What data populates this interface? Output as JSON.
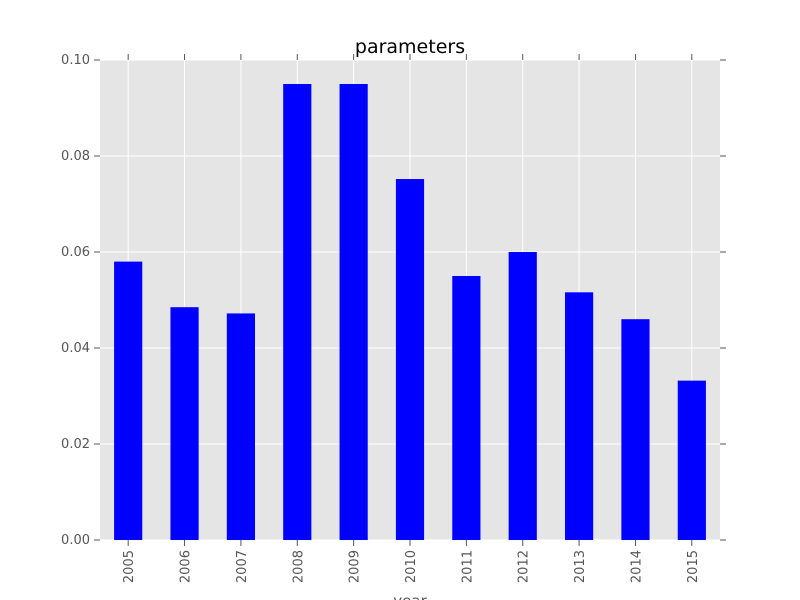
{
  "chart_data": {
    "type": "bar",
    "title": "parameters",
    "xlabel": "year",
    "ylabel": "",
    "categories": [
      "2005",
      "2006",
      "2007",
      "2008",
      "2009",
      "2010",
      "2011",
      "2012",
      "2013",
      "2014",
      "2015"
    ],
    "values": [
      0.058,
      0.0485,
      0.0472,
      0.095,
      0.095,
      0.0752,
      0.055,
      0.06,
      0.0516,
      0.046,
      0.0332
    ],
    "ylim": [
      0,
      0.1
    ],
    "yticks": [
      "0.00",
      "0.02",
      "0.04",
      "0.06",
      "0.08",
      "0.10"
    ],
    "grid": true,
    "colors": {
      "bar": "#0000ff",
      "plot_background": "#e5e5e5",
      "grid": "#ffffff"
    }
  }
}
